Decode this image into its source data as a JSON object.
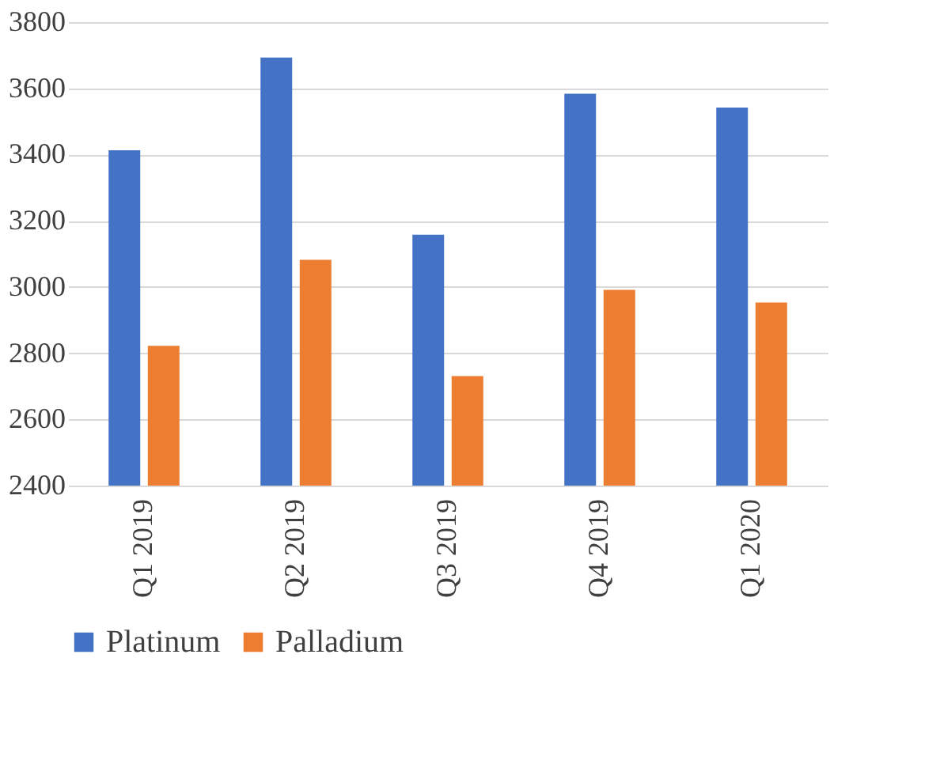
{
  "chart_data": {
    "type": "bar",
    "categories": [
      "Q1 2019",
      "Q2 2019",
      "Q3 2019",
      "Q4 2019",
      "Q1 2020"
    ],
    "series": [
      {
        "name": "Platinum",
        "color": "#4472c4",
        "values": [
          3413,
          3693,
          3158,
          3584,
          3542
        ]
      },
      {
        "name": "Palladium",
        "color": "#ed7d31",
        "values": [
          2822,
          3082,
          2731,
          2991,
          2953
        ]
      }
    ],
    "ylim": [
      2400,
      3800
    ],
    "yticks": [
      2400,
      2600,
      2800,
      3000,
      3200,
      3400,
      3600,
      3800
    ],
    "grid": "y",
    "legend": "bottom"
  }
}
